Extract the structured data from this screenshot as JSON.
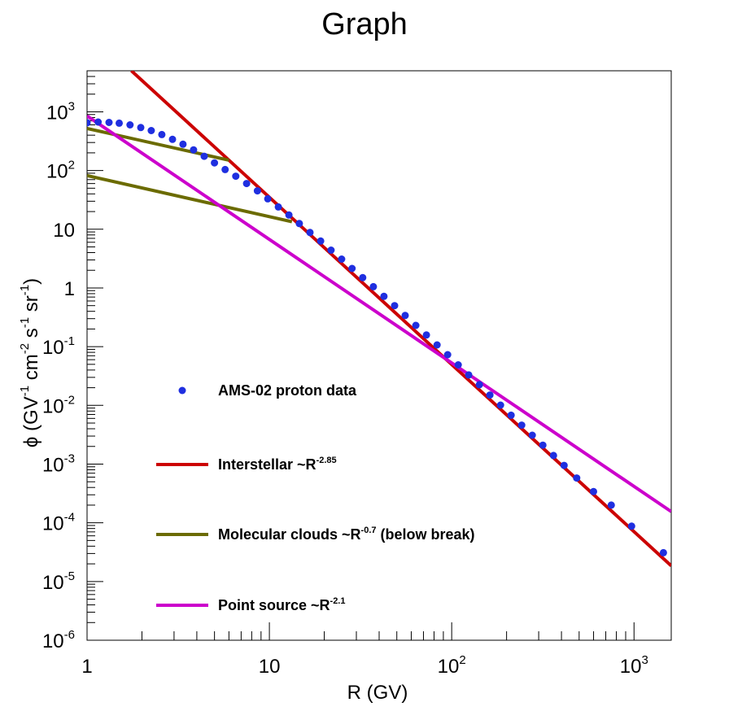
{
  "chart_data": {
    "type": "line",
    "title": "Graph",
    "xlabel": {
      "main": "R (GV)"
    },
    "ylabel": {
      "phi": "ϕ",
      "open": "(GV",
      "e1": "-1",
      "cm": "cm",
      "e2": "-2",
      "s": "s",
      "e3": "-1",
      "sr": "sr",
      "e4": "-1",
      "close": ")"
    },
    "x_scale": "log",
    "y_scale": "log",
    "xlim": [
      1,
      1600
    ],
    "ylim": [
      1e-06,
      5000
    ],
    "x_ticks": [
      {
        "value": 1,
        "base": "1",
        "exp": ""
      },
      {
        "value": 10,
        "base": "10",
        "exp": ""
      },
      {
        "value": 100,
        "base": "10",
        "exp": "2"
      },
      {
        "value": 1000,
        "base": "10",
        "exp": "3"
      }
    ],
    "y_ticks": [
      {
        "value": 1e-06,
        "base": "10",
        "exp": "-6"
      },
      {
        "value": 1e-05,
        "base": "10",
        "exp": "-5"
      },
      {
        "value": 0.0001,
        "base": "10",
        "exp": "-4"
      },
      {
        "value": 0.001,
        "base": "10",
        "exp": "-3"
      },
      {
        "value": 0.01,
        "base": "10",
        "exp": "-2"
      },
      {
        "value": 0.1,
        "base": "10",
        "exp": "-1"
      },
      {
        "value": 1,
        "base": "1",
        "exp": ""
      },
      {
        "value": 10,
        "base": "10",
        "exp": ""
      },
      {
        "value": 100,
        "base": "10",
        "exp": "2"
      },
      {
        "value": 1000,
        "base": "10",
        "exp": "3"
      }
    ],
    "legend": [
      {
        "key": "ams",
        "marker": "dot",
        "color": "#1f2fe0",
        "label": "AMS-02 proton data",
        "sup": ""
      },
      {
        "key": "interstellar",
        "marker": "line",
        "color": "#cc0000",
        "label": "Interstellar ~R",
        "sup": "-2.85"
      },
      {
        "key": "molecular",
        "marker": "line",
        "color": "#6b6b00",
        "label": "Molecular clouds ~R",
        "sup": "-0.7",
        "suffix": " (below break)"
      },
      {
        "key": "point",
        "marker": "line",
        "color": "#cc00cc",
        "label": "Point source ~R",
        "sup": "-2.1"
      }
    ],
    "series": [
      {
        "key": "ams",
        "type": "scatter",
        "color": "#1f2fe0",
        "points": [
          [
            1.0,
            650
          ],
          [
            1.15,
            670
          ],
          [
            1.32,
            660
          ],
          [
            1.5,
            640
          ],
          [
            1.72,
            600
          ],
          [
            1.97,
            540
          ],
          [
            2.25,
            480
          ],
          [
            2.57,
            410
          ],
          [
            2.94,
            340
          ],
          [
            3.36,
            280
          ],
          [
            3.84,
            225
          ],
          [
            4.39,
            175
          ],
          [
            5.0,
            135
          ],
          [
            5.72,
            104
          ],
          [
            6.54,
            80
          ],
          [
            7.5,
            60
          ],
          [
            8.6,
            45
          ],
          [
            9.8,
            33
          ],
          [
            11.2,
            24
          ],
          [
            12.8,
            17.5
          ],
          [
            14.6,
            12.5
          ],
          [
            16.7,
            8.8
          ],
          [
            19.1,
            6.3
          ],
          [
            21.8,
            4.4
          ],
          [
            24.9,
            3.1
          ],
          [
            28.4,
            2.15
          ],
          [
            32.5,
            1.5
          ],
          [
            37.2,
            1.05
          ],
          [
            42.5,
            0.72
          ],
          [
            48.6,
            0.5
          ],
          [
            55.6,
            0.34
          ],
          [
            63.6,
            0.23
          ],
          [
            72.7,
            0.158
          ],
          [
            83.1,
            0.107
          ],
          [
            95,
            0.073
          ],
          [
            108.6,
            0.049
          ],
          [
            124,
            0.033
          ],
          [
            141.8,
            0.0225
          ],
          [
            162,
            0.015
          ],
          [
            185.3,
            0.0101
          ],
          [
            211.8,
            0.0068
          ],
          [
            242,
            0.0046
          ],
          [
            276.7,
            0.0031
          ],
          [
            316.3,
            0.0021
          ],
          [
            361.6,
            0.0014
          ],
          [
            413.4,
            0.00095
          ],
          [
            485,
            0.00058
          ],
          [
            600,
            0.00034
          ],
          [
            750,
            0.0002
          ],
          [
            970,
            8.75e-05
          ],
          [
            1450,
            3.1e-05
          ]
        ]
      },
      {
        "key": "interstellar",
        "type": "line",
        "color": "#cc0000",
        "points": [
          [
            1.75,
            5000
          ],
          [
            1600,
            1.85e-05
          ]
        ]
      },
      {
        "key": "molecular_upper",
        "type": "line",
        "color": "#6b6b00",
        "points": [
          [
            1,
            520
          ],
          [
            6,
            150
          ]
        ]
      },
      {
        "key": "molecular_lower",
        "type": "line",
        "color": "#6b6b00",
        "points": [
          [
            1,
            82
          ],
          [
            13.3,
            13.4
          ]
        ]
      },
      {
        "key": "point",
        "type": "line",
        "color": "#cc00cc",
        "points": [
          [
            1,
            850
          ],
          [
            1600,
            0.000155
          ]
        ]
      }
    ]
  }
}
